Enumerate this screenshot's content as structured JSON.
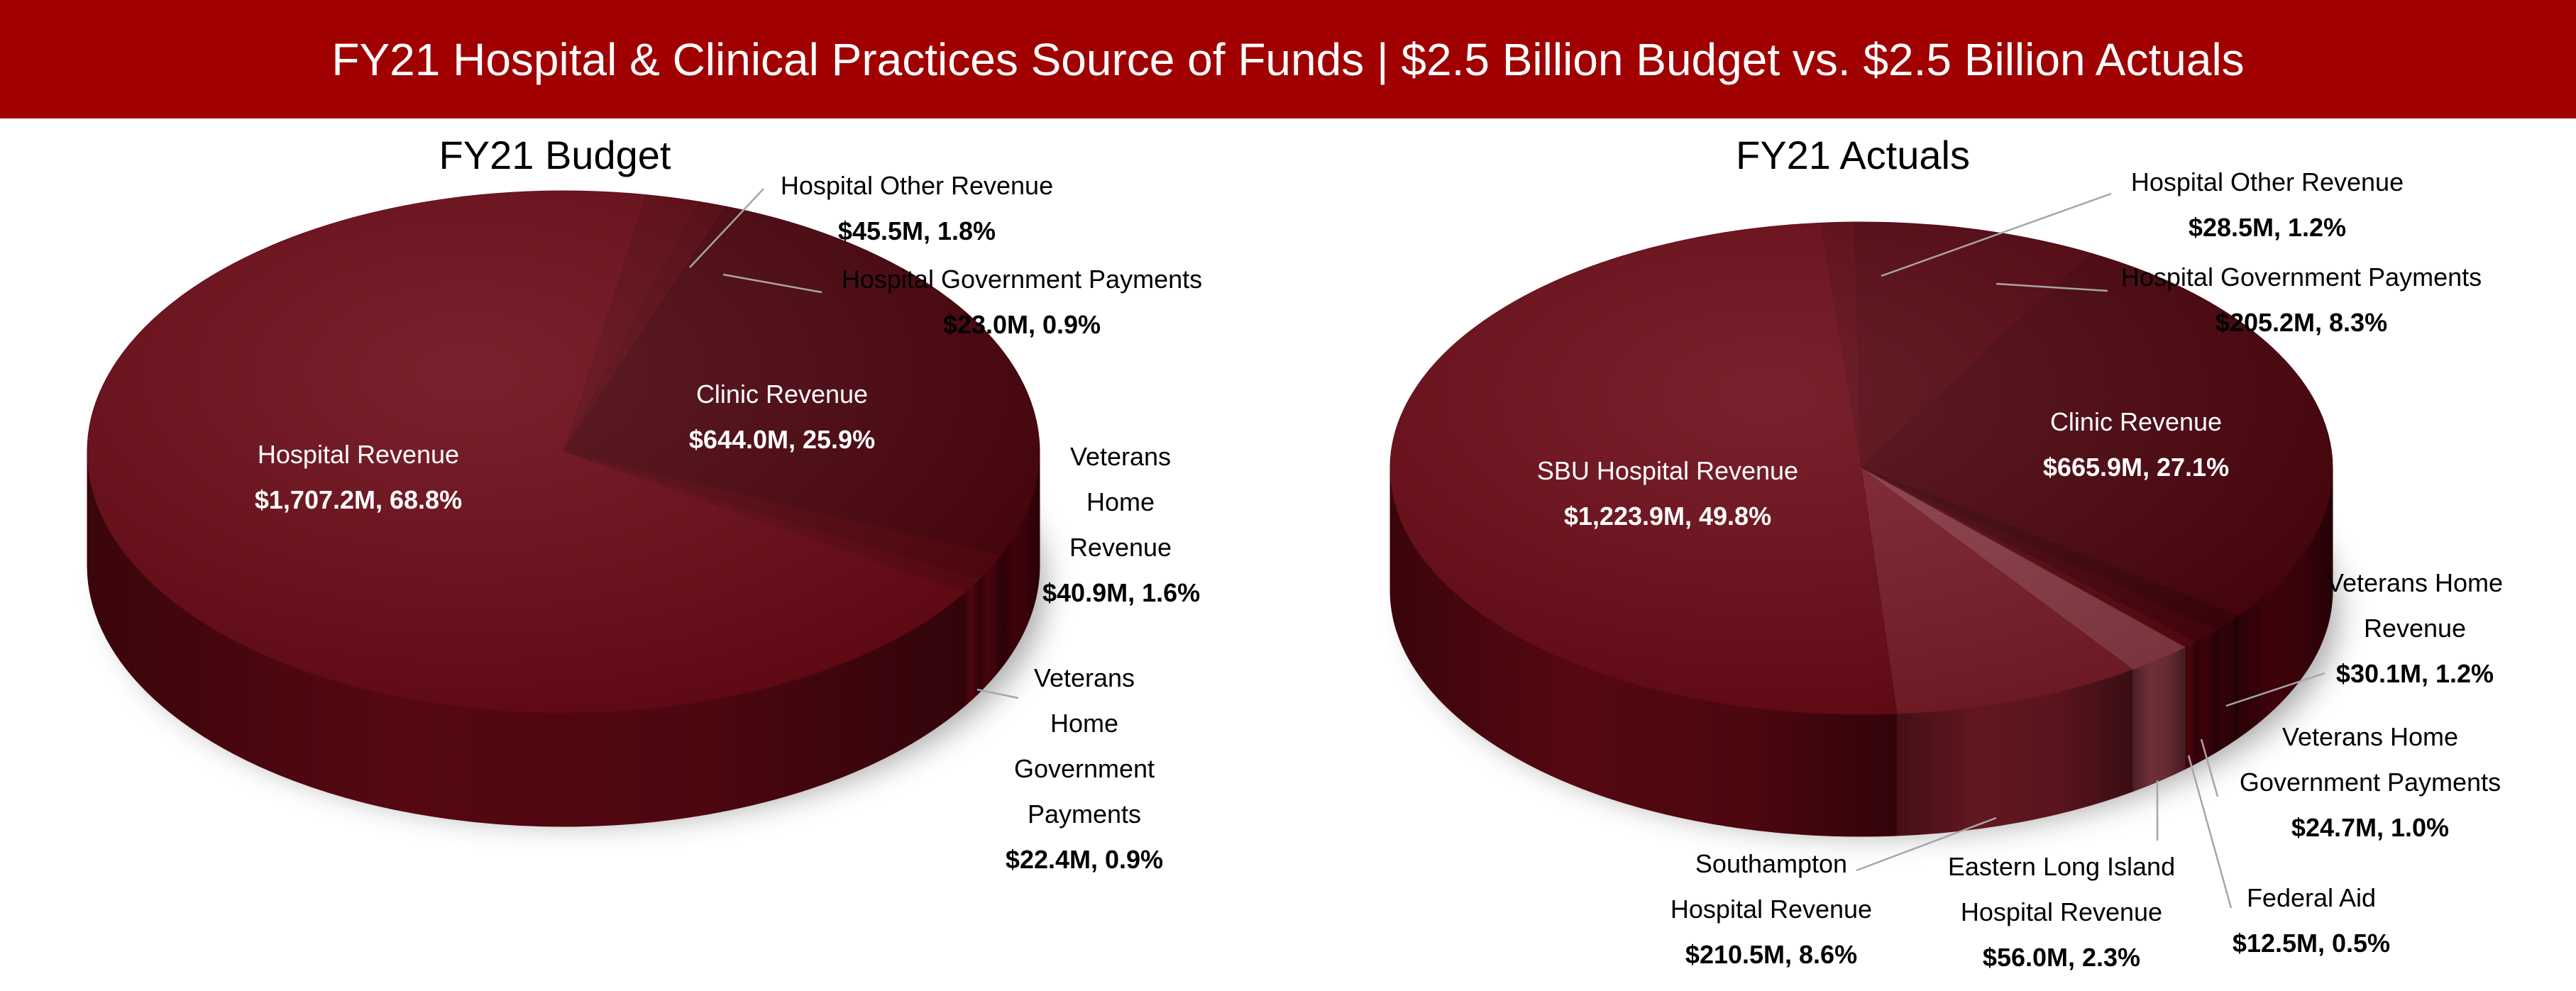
{
  "title": "FY21 Hospital & Clinical Practices Source of Funds | $2.5 Billion Budget vs. $2.5 Billion Actuals",
  "chart_data": [
    {
      "type": "pie",
      "title": "FY21 Budget",
      "categories": [
        "Hospital Other Revenue",
        "Hospital Government Payments",
        "Clinic Revenue",
        "Veterans Home Revenue",
        "Veterans Home Government Payments",
        "Hospital Revenue"
      ],
      "values": [
        45.5,
        23.0,
        644.0,
        40.9,
        22.4,
        1707.2
      ],
      "value_labels": [
        "$45.5M, 1.8%",
        "$23.0M, 0.9%",
        "$644.0M, 25.9%",
        "$40.9M, 1.6%",
        "$22.4M, 0.9%",
        "$1,707.2M, 68.8%"
      ],
      "colors": [
        "#5e0712",
        "#58060f",
        "#4c040d",
        "#56060f",
        "#5e0712",
        "#6a0915"
      ]
    },
    {
      "type": "pie",
      "title": "FY21 Actuals",
      "categories": [
        "Hospital Other Revenue",
        "Hospital Government Payments",
        "Clinic Revenue",
        "Veterans Home Revenue",
        "Veterans Home Government Payments",
        "Federal Aid",
        "Eastern Long Island Hospital Revenue",
        "Southampton Hospital Revenue",
        "SBU Hospital Revenue"
      ],
      "values": [
        28.5,
        205.2,
        665.9,
        30.1,
        24.7,
        12.5,
        56.0,
        210.5,
        1223.9
      ],
      "value_labels": [
        "$28.5M, 1.2%",
        "$205.2M, 8.3%",
        "$665.9M, 27.1%",
        "$30.1M, 1.2%",
        "$24.7M, 1.0%",
        "$12.5M, 0.5%",
        "$56.0M, 2.3%",
        "$210.5M, 8.6%",
        "$1,223.9M, 49.8%"
      ],
      "colors": [
        "#5e0712",
        "#55050f",
        "#4c040d",
        "#3e030a",
        "#4a040c",
        "#5a0711",
        "#8a3a44",
        "#7a1c28",
        "#6a0915"
      ]
    }
  ]
}
